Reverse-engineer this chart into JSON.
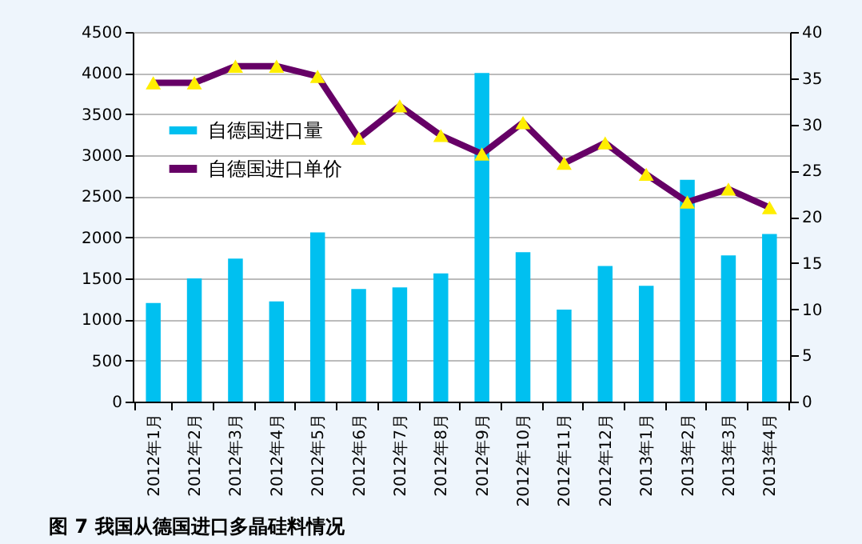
{
  "chart_data": {
    "type": "bar",
    "title": "图 7    我国从德国进口多晶硅料情况",
    "categories": [
      "2012年1月",
      "2012年2月",
      "2012年3月",
      "2012年4月",
      "2012年5月",
      "2012年6月",
      "2012年7月",
      "2012年8月",
      "2012年9月",
      "2012年10月",
      "2012年11月",
      "2012年12月",
      "2013年1月",
      "2013年2月",
      "2013年3月",
      "2013年4月"
    ],
    "series": [
      {
        "name": "自德国进口量",
        "color": "#00c0f0",
        "values": [
          1200,
          1500,
          1740,
          1220,
          2060,
          1370,
          1390,
          1560,
          4000,
          1820,
          1120,
          1650,
          1410,
          2700,
          1780,
          2040
        ]
      },
      {
        "name": "自德国进口单价",
        "type": "line",
        "axis": "y2",
        "color": "#660066",
        "values": [
          34.5,
          34.5,
          36.3,
          36.3,
          35.2,
          28.5,
          32,
          28.8,
          26.8,
          30.2,
          25.8,
          28,
          24.6,
          21.6,
          23,
          21
        ]
      }
    ],
    "ylim": [
      0,
      4500
    ],
    "yticks": [
      0,
      500,
      1000,
      1500,
      2000,
      2500,
      3000,
      3500,
      4000,
      4500
    ],
    "y2lim": [
      0,
      40
    ],
    "y2ticks": [
      0,
      5,
      10,
      15,
      20,
      25,
      30,
      35,
      40
    ],
    "grid": "y",
    "legend": "top left",
    "marker": "triangle",
    "line_style": "solid"
  }
}
